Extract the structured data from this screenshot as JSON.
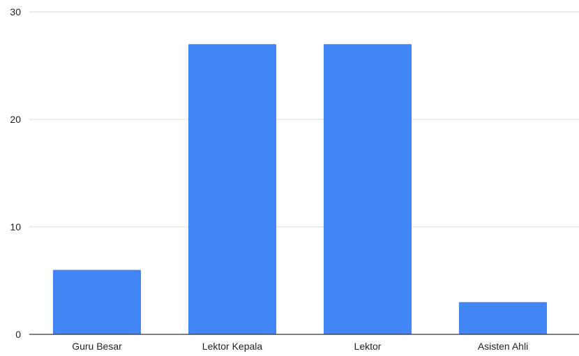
{
  "chart_data": {
    "type": "bar",
    "categories": [
      "Guru Besar",
      "Lektor Kepala",
      "Lektor",
      "Asisten Ahli"
    ],
    "values": [
      6,
      27,
      27,
      3
    ],
    "ylim": [
      0,
      30
    ],
    "yticks": [
      0,
      10,
      20,
      30
    ],
    "grid": true,
    "legend": "none",
    "title": "",
    "xlabel": "",
    "ylabel": ""
  },
  "colors": {
    "bar": "#4285f4",
    "grid": "#d9d9d9",
    "axis": "#333333",
    "text": "#222222"
  }
}
